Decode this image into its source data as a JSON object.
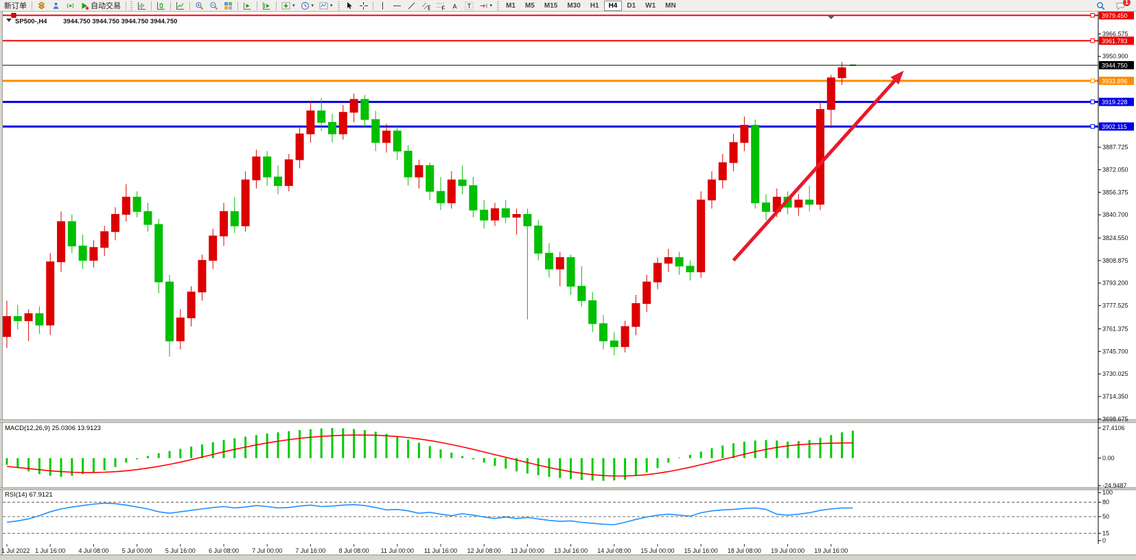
{
  "toolbar": {
    "active_timeframe": "H4",
    "items": [
      {
        "type": "text",
        "name": "new-order-button",
        "label": "新订单"
      },
      {
        "type": "sep"
      },
      {
        "type": "icon",
        "name": "market-icon",
        "icon": "market"
      },
      {
        "type": "icon",
        "name": "community-icon",
        "icon": "community"
      },
      {
        "type": "icon",
        "name": "signals-icon",
        "icon": "signals"
      },
      {
        "type": "icon-text",
        "name": "auto-trading-button",
        "icon": "autotrade",
        "label": "自动交易"
      },
      {
        "type": "sep"
      },
      {
        "type": "grip"
      },
      {
        "type": "icon",
        "name": "bar-chart-button",
        "icon": "bars"
      },
      {
        "type": "sep"
      },
      {
        "type": "icon",
        "name": "candlestick-chart-button",
        "icon": "candles"
      },
      {
        "type": "sep"
      },
      {
        "type": "icon",
        "name": "line-chart-button",
        "icon": "line"
      },
      {
        "type": "sep"
      },
      {
        "type": "icon",
        "name": "zoom-in-button",
        "icon": "zoomin"
      },
      {
        "type": "icon",
        "name": "zoom-out-button",
        "icon": "zoomout"
      },
      {
        "type": "icon",
        "name": "tile-windows-button",
        "icon": "tile"
      },
      {
        "type": "sep"
      },
      {
        "type": "icon",
        "name": "auto-scroll-button",
        "icon": "autoscroll"
      },
      {
        "type": "sep"
      },
      {
        "type": "icon",
        "name": "chart-shift-button",
        "icon": "chartshift"
      },
      {
        "type": "sep"
      },
      {
        "type": "icon",
        "name": "indicators-button",
        "icon": "indicators",
        "dropdown": true
      },
      {
        "type": "icon",
        "name": "periods-button",
        "icon": "periods",
        "dropdown": true
      },
      {
        "type": "icon",
        "name": "templates-button",
        "icon": "templates",
        "dropdown": true
      },
      {
        "type": "grip"
      },
      {
        "type": "icon",
        "name": "cursor-button",
        "icon": "cursor"
      },
      {
        "type": "icon",
        "name": "crosshair-button",
        "icon": "crosshair"
      },
      {
        "type": "sep"
      },
      {
        "type": "icon",
        "name": "vertical-line-button",
        "icon": "vline"
      },
      {
        "type": "icon",
        "name": "horizontal-line-button",
        "icon": "hline"
      },
      {
        "type": "icon",
        "name": "trendline-button",
        "icon": "trend"
      },
      {
        "type": "icon",
        "name": "equidistant-channel-button",
        "icon": "channel"
      },
      {
        "type": "icon",
        "name": "fibonacci-button",
        "icon": "fibo"
      },
      {
        "type": "icon",
        "name": "text-button",
        "icon": "textA"
      },
      {
        "type": "icon",
        "name": "text-label-button",
        "icon": "textT"
      },
      {
        "type": "icon",
        "name": "arrows-button",
        "icon": "arrows",
        "dropdown": true
      },
      {
        "type": "grip"
      },
      {
        "type": "tf",
        "name": "timeframe-m1",
        "label": "M1"
      },
      {
        "type": "tf",
        "name": "timeframe-m5",
        "label": "M5"
      },
      {
        "type": "tf",
        "name": "timeframe-m15",
        "label": "M15"
      },
      {
        "type": "tf",
        "name": "timeframe-m30",
        "label": "M30"
      },
      {
        "type": "tf",
        "name": "timeframe-h1",
        "label": "H1"
      },
      {
        "type": "tf",
        "name": "timeframe-h4",
        "label": "H4"
      },
      {
        "type": "tf",
        "name": "timeframe-d1",
        "label": "D1"
      },
      {
        "type": "tf",
        "name": "timeframe-w1",
        "label": "W1"
      },
      {
        "type": "tf",
        "name": "timeframe-mn",
        "label": "MN"
      }
    ],
    "right_items": [
      {
        "name": "search-button",
        "icon": "search"
      },
      {
        "name": "notifications-button",
        "icon": "chat",
        "badge": "1"
      }
    ]
  },
  "chart": {
    "symbol_label": "SP500-,H4",
    "ohlc_label": "3944.750 3944.750 3944.750 3944.750"
  },
  "chart_data": [
    {
      "type": "candlestick",
      "symbol": "SP500-",
      "timeframe": "H4",
      "up_color": "#dd0000",
      "down_color": "#00bf00",
      "ylim": [
        3698.14,
        3982.0
      ],
      "y_ticks": [
        "3966.575",
        "3950.900",
        "3887.725",
        "3872.050",
        "3856.375",
        "3840.700",
        "3824.550",
        "3808.875",
        "3793.200",
        "3777.525",
        "3761.375",
        "3745.700",
        "3730.025",
        "3714.350",
        "3698.675"
      ],
      "x_labels": [
        "1 Jul 2022",
        "1 Jul 16:00",
        "4 Jul 08:00",
        "5 Jul 00:00",
        "5 Jul 16:00",
        "6 Jul 08:00",
        "7 Jul 00:00",
        "7 Jul 16:00",
        "8 Jul 08:00",
        "11 Jul 00:00",
        "11 Jul 16:00",
        "12 Jul 08:00",
        "13 Jul 00:00",
        "13 Jul 16:00",
        "14 Jul 08:00",
        "15 Jul 00:00",
        "15 Jul 16:00",
        "18 Jul 08:00",
        "19 Jul 00:00",
        "19 Jul 16:00"
      ],
      "label_every_n_bars": 4,
      "current_price": {
        "value": 3944.75,
        "label": "3944.750",
        "line_color": "#000000",
        "box_color": "#000000"
      },
      "hlines": [
        {
          "price": 3979.45,
          "label": "3979.450",
          "color": "#ee0000",
          "width": 2,
          "anchors": [
            "left",
            "right"
          ]
        },
        {
          "price": 3961.783,
          "label": "3961.783",
          "color": "#ee0000",
          "width": 2,
          "anchors": [
            "right"
          ]
        },
        {
          "price": 3933.896,
          "label": "3933.896",
          "color": "#ff8c00",
          "width": 3,
          "anchors": [
            "right"
          ]
        },
        {
          "price": 3919.228,
          "label": "3919.228",
          "color": "#0000e6",
          "width": 3,
          "anchors": [
            "right"
          ]
        },
        {
          "price": 3902.115,
          "label": "3902.115",
          "color": "#0000e6",
          "width": 3,
          "anchors": [
            "right"
          ]
        }
      ],
      "trend_arrow": {
        "from": {
          "bar": 67,
          "price": 3809
        },
        "to": {
          "bar": 82.7,
          "price": 3941
        },
        "color": "#e8192c"
      },
      "shift_marker_bar": 76,
      "ohlc": [
        [
          3756,
          3781,
          3748,
          3770
        ],
        [
          3770,
          3778,
          3761,
          3767
        ],
        [
          3767,
          3775,
          3753,
          3772
        ],
        [
          3772,
          3777,
          3758,
          3764
        ],
        [
          3764,
          3814,
          3757,
          3808
        ],
        [
          3808,
          3843,
          3801,
          3836
        ],
        [
          3836,
          3841,
          3814,
          3819
        ],
        [
          3819,
          3827,
          3803,
          3809
        ],
        [
          3809,
          3823,
          3804,
          3818
        ],
        [
          3818,
          3833,
          3812,
          3829
        ],
        [
          3829,
          3846,
          3823,
          3841
        ],
        [
          3841,
          3862,
          3836,
          3853
        ],
        [
          3853,
          3857,
          3839,
          3843
        ],
        [
          3843,
          3849,
          3829,
          3834
        ],
        [
          3834,
          3838,
          3786,
          3794
        ],
        [
          3794,
          3799,
          3742,
          3753
        ],
        [
          3753,
          3775,
          3747,
          3769
        ],
        [
          3769,
          3791,
          3763,
          3787
        ],
        [
          3787,
          3813,
          3781,
          3809
        ],
        [
          3809,
          3831,
          3803,
          3826
        ],
        [
          3826,
          3849,
          3819,
          3843
        ],
        [
          3843,
          3853,
          3828,
          3833
        ],
        [
          3833,
          3871,
          3829,
          3865
        ],
        [
          3865,
          3886,
          3859,
          3881
        ],
        [
          3881,
          3885,
          3861,
          3867
        ],
        [
          3867,
          3875,
          3855,
          3861
        ],
        [
          3861,
          3883,
          3857,
          3879
        ],
        [
          3879,
          3903,
          3873,
          3897
        ],
        [
          3897,
          3920,
          3891,
          3913
        ],
        [
          3913,
          3922,
          3899,
          3905
        ],
        [
          3905,
          3911,
          3891,
          3897
        ],
        [
          3897,
          3917,
          3893,
          3912
        ],
        [
          3912,
          3925,
          3905,
          3921
        ],
        [
          3921,
          3924,
          3901,
          3907
        ],
        [
          3907,
          3913,
          3885,
          3891
        ],
        [
          3891,
          3904,
          3884,
          3899
        ],
        [
          3899,
          3903,
          3879,
          3885
        ],
        [
          3885,
          3889,
          3861,
          3867
        ],
        [
          3867,
          3879,
          3859,
          3875
        ],
        [
          3875,
          3877,
          3851,
          3857
        ],
        [
          3857,
          3867,
          3844,
          3849
        ],
        [
          3849,
          3871,
          3845,
          3865
        ],
        [
          3865,
          3875,
          3855,
          3861
        ],
        [
          3861,
          3867,
          3839,
          3844
        ],
        [
          3844,
          3851,
          3831,
          3837
        ],
        [
          3837,
          3849,
          3833,
          3845
        ],
        [
          3845,
          3851,
          3835,
          3839
        ],
        [
          3839,
          3845,
          3827,
          3841
        ],
        [
          3841,
          3845,
          3768,
          3833
        ],
        [
          3833,
          3837,
          3809,
          3814
        ],
        [
          3814,
          3821,
          3797,
          3803
        ],
        [
          3803,
          3815,
          3791,
          3811
        ],
        [
          3811,
          3813,
          3785,
          3791
        ],
        [
          3791,
          3805,
          3777,
          3781
        ],
        [
          3781,
          3787,
          3759,
          3765
        ],
        [
          3765,
          3771,
          3747,
          3753
        ],
        [
          3753,
          3759,
          3743,
          3749
        ],
        [
          3749,
          3767,
          3745,
          3763
        ],
        [
          3763,
          3785,
          3757,
          3779
        ],
        [
          3779,
          3799,
          3773,
          3794
        ],
        [
          3794,
          3811,
          3789,
          3807
        ],
        [
          3807,
          3817,
          3801,
          3811
        ],
        [
          3811,
          3815,
          3799,
          3805
        ],
        [
          3805,
          3809,
          3795,
          3801
        ],
        [
          3801,
          3857,
          3797,
          3851
        ],
        [
          3851,
          3871,
          3845,
          3865
        ],
        [
          3865,
          3883,
          3859,
          3877
        ],
        [
          3877,
          3897,
          3871,
          3891
        ],
        [
          3891,
          3909,
          3885,
          3903
        ],
        [
          3903,
          3907,
          3845,
          3849
        ],
        [
          3849,
          3855,
          3837,
          3843
        ],
        [
          3843,
          3859,
          3839,
          3853
        ],
        [
          3853,
          3857,
          3841,
          3846
        ],
        [
          3846,
          3855,
          3840,
          3851
        ],
        [
          3851,
          3861,
          3843,
          3848
        ],
        [
          3848,
          3919,
          3844,
          3914
        ],
        [
          3914,
          3938,
          3901,
          3936
        ],
        [
          3936,
          3947,
          3931,
          3943
        ],
        [
          3944.75,
          3944.75,
          3944.75,
          3944.75
        ]
      ]
    },
    {
      "type": "bar",
      "name": "MACD(12,26,9)",
      "values": "25.0306 13.9123",
      "label": "MACD(12,26,9) 25.0306 13.9123",
      "histogram_color": "#00cc00",
      "signal_color": "#ff0000",
      "ylim": [
        -26.8,
        32.4
      ],
      "y_ticks": [
        {
          "v": 27.4106,
          "label": "27.4106"
        },
        {
          "v": 0,
          "label": "0.00"
        },
        {
          "v": -24.9487,
          "label": "-24.9487"
        }
      ],
      "histogram": [
        -6,
        -9,
        -12,
        -14.5,
        -16,
        -17,
        -16,
        -14.5,
        -13,
        -11,
        -8,
        -4,
        -1,
        2,
        4.5,
        6.5,
        8.5,
        10.5,
        12.5,
        14.5,
        16.5,
        18,
        19.5,
        21,
        22.5,
        23.5,
        24.5,
        25.5,
        26.3,
        27,
        27.4,
        27.2,
        26.5,
        25.5,
        24,
        22,
        19.5,
        17,
        14,
        11,
        8,
        5,
        2,
        -1,
        -4,
        -7,
        -9.5,
        -12,
        -14,
        -15.5,
        -17,
        -18,
        -19,
        -19.8,
        -20.3,
        -20.5,
        -20.2,
        -19.5,
        -16,
        -13,
        -9,
        -4,
        0.5,
        3,
        6,
        9,
        11.5,
        13.5,
        15,
        16,
        16.5,
        16,
        15,
        15.5,
        16.5,
        18.5,
        21,
        23.5,
        25.03
      ],
      "signal": [
        -7.5,
        -8.5,
        -9.5,
        -10.5,
        -11.5,
        -12.2,
        -12.8,
        -13,
        -13,
        -12.8,
        -12.3,
        -11.5,
        -10.4,
        -9,
        -7.4,
        -5.6,
        -3.6,
        -1.4,
        1,
        3.4,
        5.8,
        8,
        10,
        12,
        13.8,
        15.4,
        16.8,
        18,
        19,
        19.8,
        20.4,
        20.8,
        21,
        21,
        20.8,
        20.4,
        19.7,
        18.7,
        17.5,
        16,
        14.3,
        12.4,
        10.3,
        8,
        5.6,
        3.2,
        0.8,
        -1.6,
        -4,
        -6.3,
        -8.5,
        -10.5,
        -12.3,
        -13.8,
        -15,
        -15.8,
        -16.2,
        -16.2,
        -15.8,
        -15,
        -13.8,
        -12.2,
        -10.3,
        -8.2,
        -6,
        -3.6,
        -1.2,
        1.2,
        3.6,
        5.9,
        8,
        9.8,
        11.2,
        12.2,
        12.9,
        13.3,
        13.6,
        13.8,
        13.91
      ]
    },
    {
      "type": "line",
      "name": "RSI(14)",
      "value": "67.9121",
      "label": "RSI(14) 67.9121",
      "line_color": "#1e90ff",
      "ylim": [
        -7,
        106
      ],
      "levels": [
        80,
        50,
        15
      ],
      "y_ticks": [
        {
          "v": 100,
          "label": "100"
        },
        {
          "v": 80,
          "label": "80"
        },
        {
          "v": 50,
          "label": "50"
        },
        {
          "v": 15,
          "label": "15"
        },
        {
          "v": 0,
          "label": "0"
        }
      ],
      "values": [
        38,
        41,
        45,
        52,
        60,
        66,
        70,
        73,
        76,
        78,
        77,
        74,
        70,
        66,
        60,
        57,
        60,
        63,
        66,
        69,
        71,
        68,
        70,
        73,
        71,
        68,
        69,
        72,
        74,
        71,
        72,
        74,
        75,
        73,
        69,
        64,
        65,
        62,
        57,
        59,
        55,
        52,
        56,
        53,
        49,
        46,
        49,
        46,
        48,
        45,
        42,
        40,
        41,
        38,
        36,
        34,
        33,
        38,
        44,
        49,
        53,
        55,
        53,
        51,
        58,
        62,
        64,
        65,
        67,
        68,
        65,
        55,
        53,
        55,
        58,
        63,
        66,
        68,
        67.91
      ]
    }
  ]
}
